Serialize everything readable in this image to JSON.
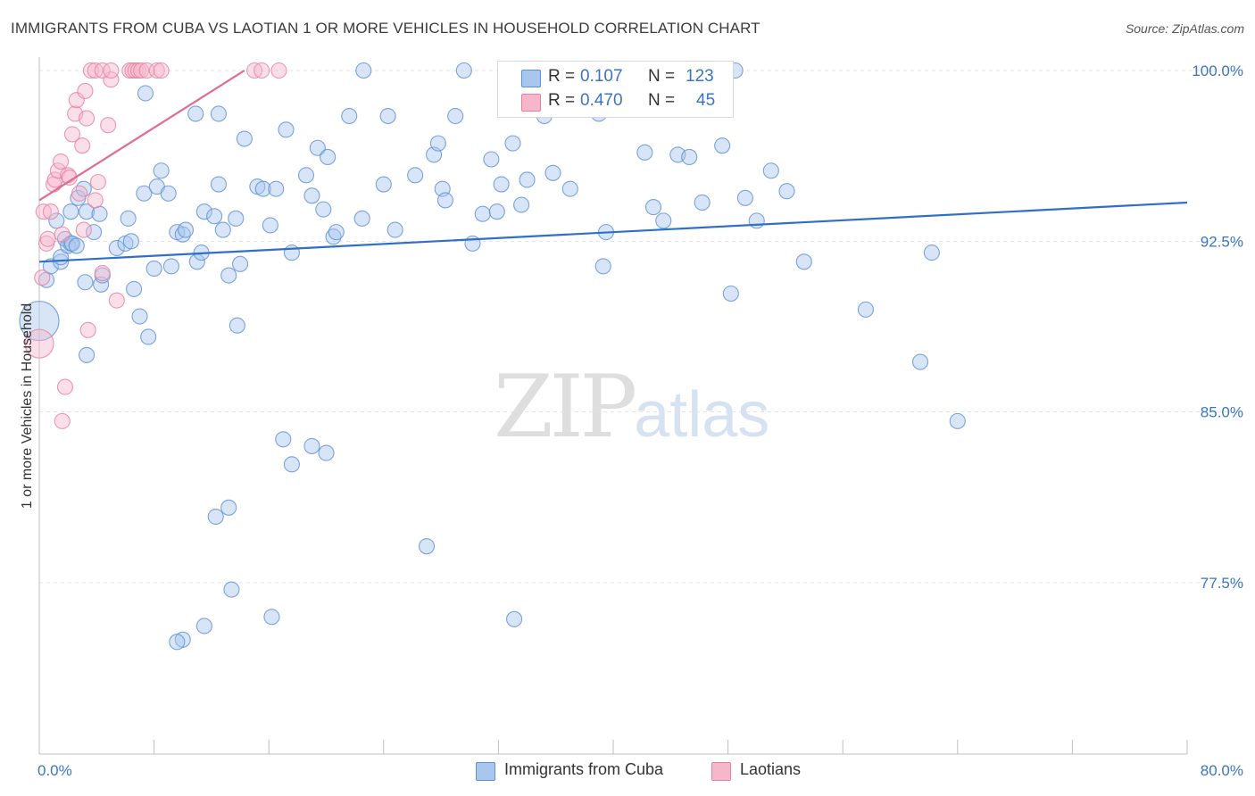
{
  "title": "IMMIGRANTS FROM CUBA VS LAOTIAN 1 OR MORE VEHICLES IN HOUSEHOLD CORRELATION CHART",
  "source": "Source: ZipAtlas.com",
  "watermark": {
    "zip": "ZIP",
    "atlas": "atlas"
  },
  "legend": {
    "r_label": "R =",
    "n_label": "N =",
    "series": [
      {
        "name": "Immigrants from Cuba",
        "r": "0.107",
        "n": "123"
      },
      {
        "name": "Laotians",
        "r": "0.470",
        "n": "45"
      }
    ]
  },
  "colors": {
    "blue_fill": "#a9c6ee",
    "blue_stroke": "#5b8fd6",
    "blue_line": "#2f6fca",
    "pink_fill": "#f6b7cb",
    "pink_stroke": "#e77ea0",
    "pink_line": "#e06b93",
    "tick_text": "#3a74c4",
    "grid": "#e3e3e3"
  },
  "chart_data": {
    "type": "scatter",
    "title": "IMMIGRANTS FROM CUBA VS LAOTIAN 1 OR MORE VEHICLES IN HOUSEHOLD CORRELATION CHART",
    "xlabel": "",
    "ylabel": "1 or more Vehicles in Household",
    "xlim": [
      0,
      80
    ],
    "ylim": [
      71.0,
      100.8
    ],
    "x_tick_labels": [
      "0.0%",
      "80.0%"
    ],
    "y_ticks": [
      {
        "value": 100.0,
        "label": "100.0%"
      },
      {
        "value": 92.5,
        "label": "92.5%"
      },
      {
        "value": 85.0,
        "label": "85.0%"
      },
      {
        "value": 77.5,
        "label": "77.5%"
      }
    ],
    "grid": "horizontal dashed",
    "series": [
      {
        "name": "Immigrants from Cuba",
        "color": "blue",
        "trend": [
          [
            0,
            91.6
          ],
          [
            80,
            94.2
          ]
        ],
        "points": [
          [
            0.0,
            89.0,
            3
          ],
          [
            0.5,
            90.8,
            1
          ],
          [
            0.8,
            91.4,
            1
          ],
          [
            1.2,
            93.4,
            1
          ],
          [
            1.5,
            91.6,
            1
          ],
          [
            1.5,
            91.8,
            1
          ],
          [
            1.8,
            92.6,
            1
          ],
          [
            2.0,
            92.3,
            1
          ],
          [
            2.2,
            92.4,
            1
          ],
          [
            2.7,
            94.4,
            1
          ],
          [
            3.3,
            93.8,
            1
          ],
          [
            3.8,
            92.9,
            1
          ],
          [
            4.2,
            93.7,
            1
          ],
          [
            2.2,
            93.8,
            1
          ],
          [
            3.1,
            94.8,
            1
          ],
          [
            2.3,
            92.4,
            1
          ],
          [
            2.6,
            92.3,
            1
          ],
          [
            3.2,
            90.7,
            1
          ],
          [
            4.3,
            90.6,
            1
          ],
          [
            4.4,
            91.0,
            1
          ],
          [
            5.4,
            92.2,
            1
          ],
          [
            6.0,
            92.4,
            1
          ],
          [
            6.2,
            93.5,
            1
          ],
          [
            6.4,
            92.5,
            1
          ],
          [
            6.6,
            90.4,
            1
          ],
          [
            7.0,
            89.2,
            1
          ],
          [
            7.3,
            94.6,
            1
          ],
          [
            7.6,
            88.3,
            1
          ],
          [
            8.0,
            91.3,
            1
          ],
          [
            8.2,
            94.9,
            1
          ],
          [
            8.5,
            95.6,
            1
          ],
          [
            9.0,
            94.6,
            1
          ],
          [
            9.2,
            91.4,
            1
          ],
          [
            9.6,
            92.9,
            1
          ],
          [
            10.0,
            92.8,
            1
          ],
          [
            10.2,
            93.0,
            1
          ],
          [
            11.0,
            91.6,
            1
          ],
          [
            11.3,
            92.0,
            1
          ],
          [
            11.5,
            93.8,
            1
          ],
          [
            12.2,
            93.6,
            1
          ],
          [
            12.5,
            95.0,
            1
          ],
          [
            12.8,
            93.0,
            1
          ],
          [
            13.2,
            91.0,
            1
          ],
          [
            13.7,
            93.5,
            1
          ],
          [
            14.0,
            91.5,
            1
          ],
          [
            14.3,
            97.0,
            1
          ],
          [
            15.2,
            94.9,
            1
          ],
          [
            15.6,
            94.8,
            1
          ],
          [
            16.1,
            93.2,
            1
          ],
          [
            16.5,
            94.8,
            1
          ],
          [
            17.2,
            97.4,
            1
          ],
          [
            17.6,
            92.0,
            1
          ],
          [
            18.6,
            95.4,
            1
          ],
          [
            19.0,
            94.5,
            1
          ],
          [
            19.4,
            96.6,
            1
          ],
          [
            19.8,
            93.9,
            1
          ],
          [
            20.1,
            96.2,
            1
          ],
          [
            20.5,
            92.7,
            1
          ],
          [
            20.7,
            92.9,
            1
          ],
          [
            22.5,
            93.5,
            1
          ],
          [
            24.0,
            95.0,
            1
          ],
          [
            24.3,
            98.0,
            1
          ],
          [
            24.8,
            93.0,
            1
          ],
          [
            26.2,
            95.4,
            1
          ],
          [
            27.5,
            96.3,
            1
          ],
          [
            27.8,
            96.8,
            1
          ],
          [
            28.1,
            94.8,
            1
          ],
          [
            28.3,
            94.3,
            1
          ],
          [
            29.0,
            98.0,
            1
          ],
          [
            30.2,
            92.4,
            1
          ],
          [
            30.9,
            93.7,
            1
          ],
          [
            31.5,
            96.1,
            1
          ],
          [
            31.9,
            93.8,
            1
          ],
          [
            32.2,
            95.0,
            1
          ],
          [
            33.0,
            96.8,
            1
          ],
          [
            33.6,
            94.1,
            1
          ],
          [
            34.0,
            95.2,
            1
          ],
          [
            35.2,
            98.0,
            1
          ],
          [
            35.8,
            95.5,
            1
          ],
          [
            37.0,
            94.8,
            1
          ],
          [
            39.3,
            91.4,
            1
          ],
          [
            39.0,
            98.1,
            1
          ],
          [
            39.5,
            92.9,
            1
          ],
          [
            42.2,
            96.4,
            1
          ],
          [
            42.8,
            94.0,
            1
          ],
          [
            43.5,
            93.4,
            1
          ],
          [
            44.5,
            96.3,
            1
          ],
          [
            45.3,
            96.2,
            1
          ],
          [
            46.2,
            94.2,
            1
          ],
          [
            47.6,
            96.7,
            1
          ],
          [
            48.2,
            90.2,
            1
          ],
          [
            49.2,
            94.4,
            1
          ],
          [
            50.0,
            93.4,
            1
          ],
          [
            51.0,
            95.6,
            1
          ],
          [
            52.1,
            94.7,
            1
          ],
          [
            53.3,
            91.6,
            1
          ],
          [
            57.6,
            89.5,
            1
          ],
          [
            61.4,
            87.2,
            1
          ],
          [
            62.2,
            92.0,
            1
          ],
          [
            64.0,
            84.6,
            1
          ],
          [
            17.6,
            82.7,
            1
          ],
          [
            19.0,
            83.5,
            1
          ],
          [
            17.0,
            83.8,
            1
          ],
          [
            12.3,
            80.4,
            1
          ],
          [
            13.2,
            80.8,
            1
          ],
          [
            13.4,
            77.2,
            1
          ],
          [
            10.0,
            75.0,
            1
          ],
          [
            9.6,
            74.9,
            1
          ],
          [
            11.5,
            75.6,
            1
          ],
          [
            16.2,
            76.0,
            1
          ],
          [
            27.0,
            79.1,
            1
          ],
          [
            33.1,
            75.9,
            1
          ],
          [
            13.8,
            88.8,
            1
          ],
          [
            21.6,
            98.0,
            1
          ],
          [
            7.4,
            99.0,
            1
          ],
          [
            10.9,
            98.1,
            1
          ],
          [
            12.5,
            98.1,
            1
          ],
          [
            22.6,
            100.0,
            1
          ],
          [
            29.6,
            100.0,
            1
          ],
          [
            48.5,
            100.0,
            1
          ],
          [
            3.3,
            87.5,
            1
          ],
          [
            20.0,
            83.2,
            1
          ]
        ]
      },
      {
        "name": "Laotians",
        "color": "pink",
        "trend": [
          [
            0,
            94.3
          ],
          [
            14.3,
            100.0
          ]
        ],
        "points": [
          [
            0.0,
            88.0,
            2
          ],
          [
            0.2,
            90.9,
            1
          ],
          [
            0.3,
            93.8,
            1
          ],
          [
            0.5,
            92.4,
            1
          ],
          [
            0.6,
            92.6,
            1
          ],
          [
            0.8,
            93.8,
            1
          ],
          [
            1.0,
            95.0,
            1
          ],
          [
            1.1,
            95.2,
            1
          ],
          [
            1.3,
            95.6,
            1
          ],
          [
            1.5,
            96.0,
            1
          ],
          [
            1.6,
            92.8,
            1
          ],
          [
            1.6,
            84.6,
            1
          ],
          [
            1.8,
            86.1,
            1
          ],
          [
            2.0,
            95.4,
            1
          ],
          [
            2.1,
            95.3,
            1
          ],
          [
            2.3,
            97.2,
            1
          ],
          [
            2.5,
            98.1,
            1
          ],
          [
            2.6,
            98.7,
            1
          ],
          [
            2.8,
            94.6,
            1
          ],
          [
            3.0,
            96.7,
            1
          ],
          [
            3.1,
            93.0,
            1
          ],
          [
            3.2,
            99.1,
            1
          ],
          [
            3.3,
            97.9,
            1
          ],
          [
            3.4,
            88.6,
            1
          ],
          [
            3.9,
            94.3,
            1
          ],
          [
            4.1,
            95.1,
            1
          ],
          [
            4.4,
            91.1,
            1
          ],
          [
            4.8,
            97.6,
            1
          ],
          [
            5.0,
            99.6,
            1
          ],
          [
            5.4,
            89.9,
            1
          ],
          [
            3.6,
            100.0,
            1
          ],
          [
            3.9,
            100.0,
            1
          ],
          [
            4.4,
            100.0,
            1
          ],
          [
            5.0,
            100.0,
            1
          ],
          [
            6.3,
            100.0,
            1
          ],
          [
            6.5,
            100.0,
            1
          ],
          [
            6.7,
            100.0,
            1
          ],
          [
            6.9,
            100.0,
            1
          ],
          [
            7.1,
            100.0,
            1
          ],
          [
            7.5,
            100.0,
            1
          ],
          [
            8.2,
            100.0,
            1
          ],
          [
            8.5,
            100.0,
            1
          ],
          [
            15.0,
            100.0,
            1
          ],
          [
            15.5,
            100.0,
            1
          ],
          [
            16.7,
            100.0,
            1
          ]
        ]
      }
    ]
  }
}
